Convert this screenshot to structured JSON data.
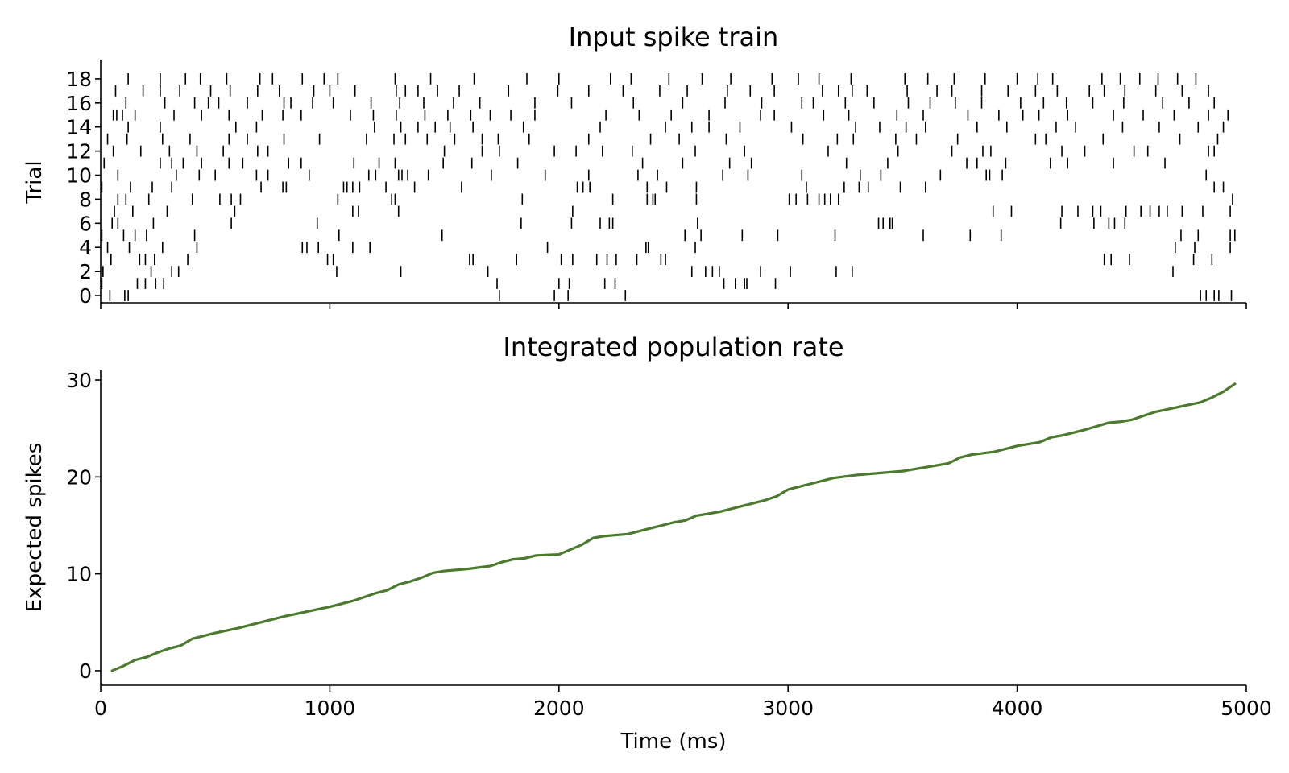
{
  "figure_colors": {
    "spike": "#000000",
    "rate_line": "#4b7a2e",
    "axis": "#000000"
  },
  "chart_data": [
    {
      "type": "raster",
      "title": "Input spike train",
      "xlabel": "",
      "ylabel": "Trial",
      "xlim": [
        0,
        5000
      ],
      "ylim": [
        -0.6,
        19.6
      ],
      "x_ticks": [
        0,
        1000,
        2000,
        3000,
        4000,
        5000
      ],
      "y_ticks": [
        0,
        2,
        4,
        6,
        8,
        10,
        12,
        14,
        16,
        18
      ],
      "y_tick_labels": [
        "0",
        "2",
        "4",
        "6",
        "8",
        "10",
        "12",
        "14",
        "16",
        "18"
      ],
      "trials": [
        [
          40,
          105,
          120,
          1740,
          1980,
          2040,
          2290,
          4800,
          4825,
          4860,
          4880,
          4935
        ],
        [
          5,
          160,
          195,
          240,
          275,
          1730,
          2000,
          2045,
          2200,
          2245,
          2720,
          2770,
          2810,
          2820,
          2945
        ],
        [
          10,
          220,
          310,
          340,
          1030,
          1310,
          1690,
          2580,
          2640,
          2670,
          2700,
          2880,
          3010,
          3210,
          3280,
          4680
        ],
        [
          45,
          170,
          195,
          235,
          380,
          990,
          1015,
          1610,
          1625,
          1815,
          2010,
          2060,
          2165,
          2210,
          2250,
          2340,
          2445,
          2465,
          4380,
          4410,
          4490,
          4770,
          4850
        ],
        [
          30,
          125,
          270,
          420,
          880,
          900,
          950,
          1100,
          1175,
          1950,
          2380,
          2390,
          2595,
          4690,
          4775,
          4930
        ],
        [
          5,
          100,
          150,
          200,
          410,
          1040,
          1490,
          2550,
          2620,
          2800,
          2955,
          3205,
          3590,
          3795,
          3930,
          4715,
          4790,
          4930,
          4950
        ],
        [
          50,
          75,
          230,
          570,
          945,
          1835,
          2055,
          2180,
          2220,
          2235,
          2605,
          3395,
          3415,
          3445,
          3455,
          4190,
          4335,
          4400,
          4425,
          4470
        ],
        [
          60,
          140,
          290,
          585,
          1100,
          1125,
          1300,
          2060,
          3895,
          3975,
          4195,
          4265,
          4330,
          4365,
          4475,
          4540,
          4580,
          4620,
          4655,
          4720,
          4810,
          4930
        ],
        [
          75,
          110,
          210,
          400,
          520,
          570,
          610,
          1035,
          1270,
          1285,
          1840,
          2235,
          2385,
          2410,
          2420,
          2600,
          3005,
          3035,
          3085,
          3135,
          3160,
          3185,
          3220,
          4940
        ],
        [
          5,
          130,
          225,
          310,
          700,
          795,
          810,
          1060,
          1075,
          1100,
          1130,
          1245,
          1370,
          1575,
          2080,
          2105,
          2135,
          2385,
          2470,
          2600,
          3080,
          3245,
          3310,
          3350,
          3490,
          3600,
          4860,
          4900
        ],
        [
          75,
          330,
          430,
          500,
          680,
          730,
          910,
          1170,
          1200,
          1300,
          1315,
          1340,
          1430,
          1705,
          1940,
          2130,
          2345,
          2430,
          2715,
          2825,
          3060,
          3315,
          3405,
          3665,
          3865,
          3880,
          3935,
          4825
        ],
        [
          15,
          260,
          310,
          360,
          440,
          560,
          620,
          820,
          875,
          1105,
          1215,
          1285,
          1495,
          1620,
          1820,
          2365,
          2540,
          2745,
          2840,
          3255,
          3435,
          3780,
          3825,
          3950,
          4145,
          4220,
          4420,
          4645
        ],
        [
          55,
          175,
          300,
          420,
          535,
          685,
          730,
          1500,
          1665,
          1740,
          1980,
          2075,
          2190,
          2320,
          2595,
          2810,
          3175,
          3480,
          3715,
          3850,
          3885,
          4195,
          4295,
          4510,
          4570,
          4835,
          4860
        ],
        [
          30,
          115,
          270,
          390,
          560,
          640,
          800,
          955,
          1160,
          1280,
          1330,
          1425,
          1545,
          1665,
          1735,
          1870,
          2130,
          2400,
          2525,
          2730,
          3065,
          3215,
          3285,
          3470,
          3560,
          3740,
          4080,
          4125,
          4375,
          4710,
          4875
        ],
        [
          120,
          260,
          590,
          680,
          1195,
          1310,
          1385,
          1460,
          1525,
          1625,
          1845,
          2180,
          2465,
          2580,
          2655,
          2790,
          3015,
          3295,
          3400,
          3515,
          3600,
          3825,
          3955,
          4170,
          4255,
          4460,
          4620,
          4790,
          4900
        ],
        [
          55,
          70,
          95,
          150,
          320,
          440,
          560,
          705,
          795,
          875,
          1090,
          1190,
          1290,
          1415,
          1515,
          1615,
          1700,
          1790,
          1895,
          2205,
          2350,
          2490,
          2655,
          2880,
          2940,
          3155,
          3265,
          3475,
          3590,
          3785,
          3920,
          4025,
          4095,
          4220,
          4420,
          4550,
          4685,
          4835,
          4920
        ],
        [
          110,
          280,
          410,
          470,
          515,
          640,
          800,
          830,
          925,
          1015,
          1180,
          1305,
          1410,
          1540,
          1655,
          1895,
          2055,
          2325,
          2540,
          2725,
          2885,
          3060,
          3110,
          3250,
          3375,
          3525,
          3620,
          3730,
          3845,
          4015,
          4115,
          4215,
          4330,
          4465,
          4635,
          4750,
          4860
        ],
        [
          65,
          185,
          260,
          345,
          480,
          565,
          685,
          780,
          930,
          1000,
          1110,
          1290,
          1330,
          1385,
          1470,
          1565,
          1780,
          1995,
          2130,
          2280,
          2440,
          2560,
          2735,
          2835,
          2940,
          3150,
          3220,
          3280,
          3345,
          3520,
          3650,
          3715,
          3845,
          3960,
          4080,
          4175,
          4315,
          4380,
          4470,
          4605,
          4720,
          4835
        ],
        [
          120,
          260,
          370,
          435,
          550,
          695,
          750,
          880,
          975,
          1035,
          1285,
          1440,
          1630,
          1860,
          2000,
          2225,
          2315,
          2480,
          2625,
          2750,
          2930,
          3045,
          3135,
          3275,
          3510,
          3610,
          3725,
          3860,
          4000,
          4090,
          4155,
          4370,
          4450,
          4535,
          4615,
          4700,
          4780
        ]
      ]
    },
    {
      "type": "line",
      "title": "Integrated population rate",
      "xlabel": "Time (ms)",
      "ylabel": "Expected spikes",
      "xlim": [
        0,
        5000
      ],
      "ylim": [
        -1.5,
        31
      ],
      "x_ticks": [
        0,
        1000,
        2000,
        3000,
        4000,
        5000
      ],
      "x_tick_labels": [
        "0",
        "1000",
        "2000",
        "3000",
        "4000",
        "5000"
      ],
      "y_ticks": [
        0,
        10,
        20,
        30
      ],
      "y_tick_labels": [
        "0",
        "10",
        "20",
        "30"
      ],
      "series": [
        {
          "name": "Integrated population rate",
          "x": [
            50,
            100,
            150,
            200,
            250,
            300,
            350,
            400,
            450,
            500,
            600,
            700,
            800,
            900,
            1000,
            1100,
            1200,
            1250,
            1300,
            1350,
            1400,
            1450,
            1500,
            1600,
            1700,
            1750,
            1800,
            1850,
            1900,
            2000,
            2050,
            2100,
            2150,
            2200,
            2300,
            2400,
            2500,
            2550,
            2600,
            2700,
            2800,
            2900,
            2950,
            3000,
            3100,
            3200,
            3300,
            3400,
            3500,
            3600,
            3700,
            3750,
            3800,
            3900,
            3950,
            4000,
            4100,
            4150,
            4200,
            4300,
            4400,
            4450,
            4500,
            4550,
            4600,
            4700,
            4800,
            4850,
            4900,
            4950
          ],
          "y": [
            0.0,
            0.5,
            1.1,
            1.4,
            1.9,
            2.3,
            2.6,
            3.3,
            3.6,
            3.9,
            4.4,
            5.0,
            5.6,
            6.1,
            6.6,
            7.2,
            8.0,
            8.3,
            8.9,
            9.2,
            9.6,
            10.1,
            10.3,
            10.5,
            10.8,
            11.2,
            11.5,
            11.6,
            11.9,
            12.0,
            12.5,
            13.0,
            13.7,
            13.9,
            14.1,
            14.7,
            15.3,
            15.5,
            16.0,
            16.4,
            17.0,
            17.6,
            18.0,
            18.7,
            19.3,
            19.9,
            20.2,
            20.4,
            20.6,
            21.0,
            21.4,
            22.0,
            22.3,
            22.6,
            22.9,
            23.2,
            23.6,
            24.1,
            24.3,
            24.9,
            25.6,
            25.7,
            25.9,
            26.3,
            26.7,
            27.2,
            27.7,
            28.2,
            28.8,
            29.6
          ]
        }
      ]
    }
  ]
}
